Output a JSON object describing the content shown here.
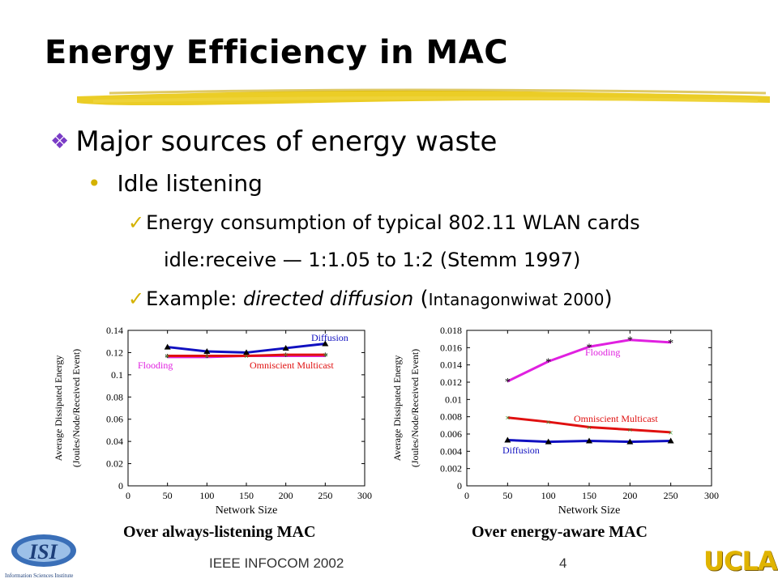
{
  "slide": {
    "title": "Energy Efficiency in MAC",
    "bullet1": "Major sources of energy waste",
    "bullet2": "Idle listening",
    "check1": "Energy consumption of typical 802.11 WLAN cards",
    "check1_cont": "idle:receive — 1:1.05 to 1:2 (Stemm 1997)",
    "check2_prefix": "Example: ",
    "check2_italic": "directed diffusion",
    "check2_open": " (",
    "check2_cite": "Intanagonwiwat 2000",
    "check2_close": ")",
    "footer_left": "IEEE INFOCOM 2002",
    "page_number": "4",
    "isi_logo_text": "ISI",
    "isi_logo_subtext": "Information Sciences Institute",
    "ucla_logo_text": "UCLA"
  },
  "colors": {
    "diffusion": "#1010c0",
    "flooding": "#e020e0",
    "omniscient": "#e01010",
    "gold": "#e0b400",
    "bullet_diamond": "#7a3cc6"
  },
  "chart_data": [
    {
      "type": "line",
      "caption": "Over always-listening MAC",
      "xlabel": "Network Size",
      "ylabel_line1": "Average Dissipated Energy",
      "ylabel_line2": "(Joules/Node/Received Event)",
      "xlim": [
        0,
        300
      ],
      "ylim": [
        0,
        0.14
      ],
      "xticks": [
        0,
        50,
        100,
        150,
        200,
        250,
        300
      ],
      "yticks": [
        0,
        0.02,
        0.04,
        0.06,
        0.08,
        0.1,
        0.12,
        0.14
      ],
      "x": [
        50,
        100,
        150,
        200,
        250
      ],
      "series": [
        {
          "name": "Diffusion",
          "values": [
            0.125,
            0.121,
            0.12,
            0.124,
            0.128
          ]
        },
        {
          "name": "Flooding",
          "values": [
            0.116,
            0.116,
            0.117,
            0.117,
            0.117
          ]
        },
        {
          "name": "Omniscient Multicast",
          "values": [
            0.117,
            0.117,
            0.117,
            0.118,
            0.118
          ]
        }
      ]
    },
    {
      "type": "line",
      "caption": "Over energy-aware MAC",
      "xlabel": "Network Size",
      "ylabel_line1": "Average Dissipated Energy",
      "ylabel_line2": "(Joules/Node/Received Event)",
      "xlim": [
        0,
        300
      ],
      "ylim": [
        0,
        0.018
      ],
      "xticks": [
        0,
        50,
        100,
        150,
        200,
        250,
        300
      ],
      "yticks": [
        0,
        0.002,
        0.004,
        0.006,
        0.008,
        0.01,
        0.012,
        0.014,
        0.016,
        0.018
      ],
      "x": [
        50,
        100,
        150,
        200,
        250
      ],
      "series": [
        {
          "name": "Flooding",
          "values": [
            0.0121,
            0.0144,
            0.0161,
            0.0169,
            0.0166
          ]
        },
        {
          "name": "Omniscient Multicast",
          "values": [
            0.0079,
            0.0074,
            0.0068,
            0.0065,
            0.0062
          ]
        },
        {
          "name": "Diffusion",
          "values": [
            0.0053,
            0.0051,
            0.0052,
            0.0051,
            0.0052
          ]
        }
      ]
    }
  ]
}
